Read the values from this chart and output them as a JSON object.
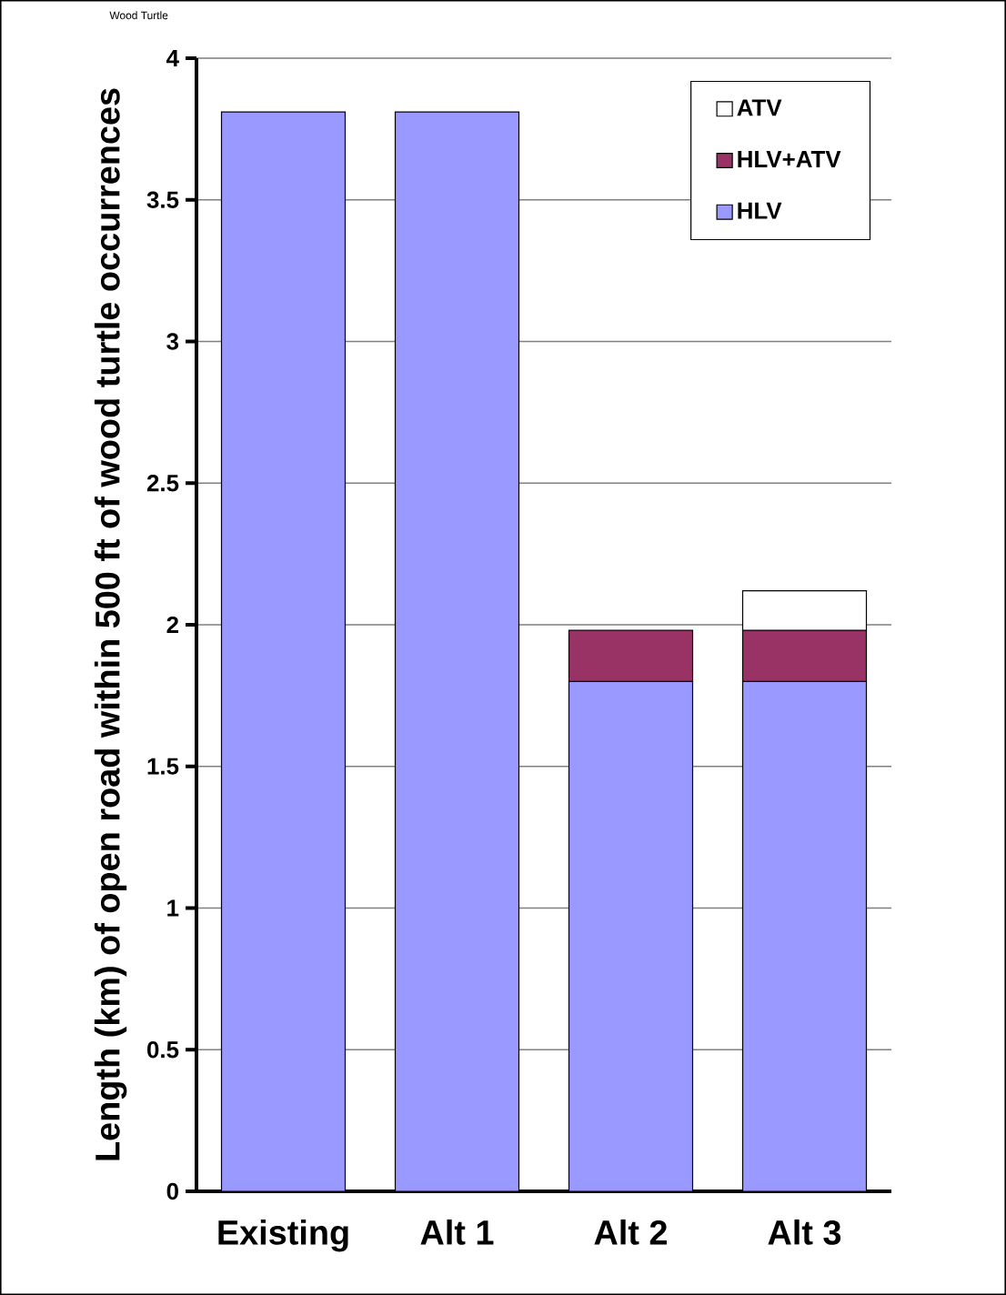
{
  "chart_data": {
    "type": "bar",
    "stacked": true,
    "title": "Wood Turtle",
    "ylabel": "Length (km) of open road within 500 ft of wood turtle occurrences",
    "categories": [
      "Existing",
      "Alt 1",
      "Alt 2",
      "Alt 3"
    ],
    "series": [
      {
        "name": "HLV",
        "color": "#9999ff",
        "values": [
          3.81,
          3.81,
          1.8,
          1.8
        ]
      },
      {
        "name": "HLV+ATV",
        "color": "#993366",
        "values": [
          null,
          null,
          0.18,
          0.18
        ]
      },
      {
        "name": "ATV",
        "color": "#ffffff",
        "values": [
          null,
          null,
          null,
          0.14
        ]
      }
    ],
    "ylim": [
      0,
      4
    ],
    "yticks": [
      0,
      0.5,
      1,
      1.5,
      2,
      2.5,
      3,
      3.5,
      4
    ],
    "grid": "y",
    "legend": "top right"
  }
}
